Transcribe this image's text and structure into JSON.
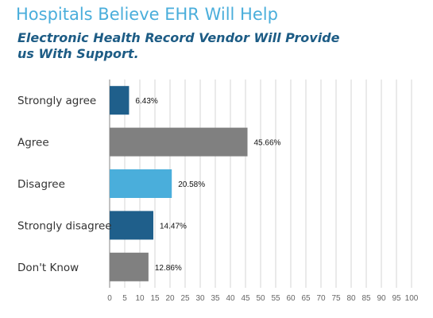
{
  "colors": {
    "title": "#4aaedb",
    "subtitle": "#1d5c85",
    "grid": "#d6d6d6",
    "axis": "#9a9a9a"
  },
  "chart_data": {
    "type": "bar",
    "orientation": "horizontal",
    "title": "Hospitals Believe EHR Will Help",
    "subtitle": "Electronic Health Record Vendor Will Provide us With Support.",
    "categories": [
      "Strongly agree",
      "Agree",
      "Disagree",
      "Strongly disagree",
      "Don't Know"
    ],
    "values": [
      6.43,
      45.66,
      20.58,
      14.47,
      12.86
    ],
    "value_labels": [
      "6.43%",
      "45.66%",
      "20.58%",
      "14.47%",
      "12.86%"
    ],
    "bar_colors": [
      "#1f5f8b",
      "#808080",
      "#4aaedb",
      "#1f5f8b",
      "#808080"
    ],
    "xlim": [
      0,
      100
    ],
    "xticks": [
      0,
      5,
      10,
      15,
      20,
      25,
      30,
      35,
      40,
      45,
      50,
      55,
      60,
      65,
      70,
      75,
      80,
      85,
      90,
      95,
      100
    ],
    "grid": true,
    "legend": "none"
  }
}
